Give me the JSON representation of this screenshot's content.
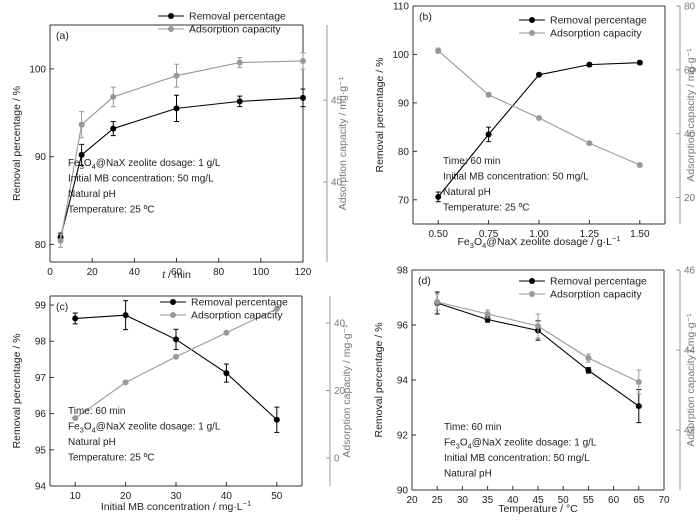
{
  "chart_data": [
    {
      "type": "line",
      "panel_label": "(a)",
      "xlabel_italic": "t",
      "xlabel_rest": " / min",
      "ylabel": "Removal percentage / %",
      "ylabel_right": "Adsorption capacity / mg·g⁻¹",
      "xlim": [
        0,
        120
      ],
      "xticks": [
        0,
        20,
        40,
        60,
        80,
        100,
        120
      ],
      "ylim": [
        78,
        105
      ],
      "yticks": [
        80,
        90,
        100
      ],
      "ylim_right": [
        35.1,
        49.6
      ],
      "yticks_right": [
        40,
        45
      ],
      "legend": [
        "Removal percentage",
        "Adsorption capacity"
      ],
      "annotations": [
        {
          "parts": [
            [
              "Fe",
              "n"
            ],
            [
              "3",
              "sub"
            ],
            [
              "O",
              "n"
            ],
            [
              "4",
              "sub"
            ],
            [
              "@NaX zeolite dosage: 1 g/L",
              "n"
            ]
          ]
        },
        {
          "parts": [
            [
              "Initial MB concentration: 50 mg/L",
              "n"
            ]
          ]
        },
        {
          "parts": [
            [
              "Natural pH",
              "n"
            ]
          ]
        },
        {
          "parts": [
            [
              "Temperature: 25 ºC",
              "n"
            ]
          ]
        }
      ],
      "series": [
        {
          "name": "Removal percentage",
          "axis": "left",
          "color": "#000000",
          "x": [
            5,
            15,
            30,
            60,
            90,
            120
          ],
          "y": [
            80.8,
            90.2,
            93.2,
            95.5,
            96.3,
            96.7
          ],
          "err": [
            0.5,
            1.2,
            0.8,
            1.5,
            0.6,
            1.0
          ]
        },
        {
          "name": "Adsorption capacity",
          "axis": "right",
          "color": "#999999",
          "x": [
            5,
            15,
            30,
            60,
            90,
            120
          ],
          "y": [
            36.4,
            43.5,
            45.2,
            46.5,
            47.3,
            47.4
          ],
          "err": [
            0.4,
            0.8,
            0.6,
            0.7,
            0.3,
            0.5
          ]
        }
      ]
    },
    {
      "type": "line",
      "panel_label": "(b)",
      "xlabel_parts": [
        [
          "Fe",
          "n"
        ],
        [
          "3",
          "sub"
        ],
        [
          "O",
          "n"
        ],
        [
          "4",
          "sub"
        ],
        [
          "@NaX zeolite dosage / g·L",
          "n"
        ],
        [
          "−1",
          "sup"
        ]
      ],
      "ylabel": "Removal percentage / %",
      "ylabel_right": "Adsorption capacity / mg·g⁻¹",
      "xlim": [
        0.375,
        1.625
      ],
      "xticks": [
        "0.50",
        "0.75",
        "1.00",
        "1.25",
        "1.50"
      ],
      "ylim": [
        65,
        110
      ],
      "yticks": [
        70,
        80,
        90,
        100,
        110
      ],
      "ylim_right": [
        11.7,
        80
      ],
      "yticks_right": [
        20,
        40,
        60,
        80
      ],
      "legend": [
        "Removal percentage",
        "Adsorption capacity"
      ],
      "annotations": [
        {
          "parts": [
            [
              "Time: 60 min",
              "n"
            ]
          ]
        },
        {
          "parts": [
            [
              "Initial MB concentration: 50 mg/L",
              "n"
            ]
          ]
        },
        {
          "parts": [
            [
              "Natural pH",
              "n"
            ]
          ]
        },
        {
          "parts": [
            [
              "Temperature: 25 ºC",
              "n"
            ]
          ]
        }
      ],
      "series": [
        {
          "name": "Removal percentage",
          "axis": "left",
          "color": "#000000",
          "x": [
            0.5,
            0.75,
            1.0,
            1.25,
            1.5
          ],
          "y": [
            70.6,
            83.5,
            95.8,
            97.9,
            98.3
          ],
          "err": [
            1.0,
            1.5,
            0.3,
            0.3,
            0.3
          ]
        },
        {
          "name": "Adsorption capacity",
          "axis": "right",
          "color": "#999999",
          "x": [
            0.5,
            0.75,
            1.0,
            1.25,
            1.5
          ],
          "y": [
            66.0,
            52.2,
            44.9,
            37.0,
            30.2
          ],
          "err": [
            0.8,
            0.6,
            0.3,
            0.3,
            0.3
          ]
        }
      ]
    },
    {
      "type": "line",
      "panel_label": "(c)",
      "xlabel_parts": [
        [
          "Initial MB concentration / mg·L",
          "n"
        ],
        [
          "−1",
          "sup"
        ]
      ],
      "ylabel": "Removal percentage / %",
      "ylabel_right": "Adsorption capacity / mg·g⁻¹",
      "xlim": [
        5,
        55
      ],
      "xticks": [
        10,
        20,
        30,
        40,
        50
      ],
      "ylim": [
        94,
        99.25
      ],
      "yticks": [
        94,
        95,
        96,
        97,
        98,
        99
      ],
      "ylim_right": [
        -8.3,
        48
      ],
      "yticks_right": [
        0,
        20,
        40
      ],
      "legend": [
        "Removal percentage",
        "Adsorption capacity"
      ],
      "annotations": [
        {
          "parts": [
            [
              "Time: 60 min",
              "n"
            ]
          ]
        },
        {
          "parts": [
            [
              "Fe",
              "n"
            ],
            [
              "3",
              "sub"
            ],
            [
              "O",
              "n"
            ],
            [
              "4",
              "sub"
            ],
            [
              "@NaX zeolite dosage: 1 g/L",
              "n"
            ]
          ]
        },
        {
          "parts": [
            [
              "Natural pH",
              "n"
            ]
          ]
        },
        {
          "parts": [
            [
              "Temperature: 25 ºC",
              "n"
            ]
          ]
        }
      ],
      "series": [
        {
          "name": "Removal percentage",
          "axis": "left",
          "color": "#000000",
          "x": [
            10,
            20,
            30,
            40,
            50
          ],
          "y": [
            98.63,
            98.72,
            98.05,
            97.12,
            95.83
          ],
          "err": [
            0.15,
            0.4,
            0.28,
            0.25,
            0.35
          ]
        },
        {
          "name": "Adsorption capacity",
          "axis": "right",
          "color": "#999999",
          "x": [
            10,
            20,
            30,
            40,
            50
          ],
          "y": [
            11.8,
            22.4,
            30.0,
            37.1,
            44.2
          ],
          "err": [
            0.3,
            0.3,
            0.3,
            0.3,
            0.3
          ]
        }
      ]
    },
    {
      "type": "line",
      "panel_label": "(d)",
      "xlabel": "Temperature / °C",
      "ylabel": "Removal percentage / %",
      "ylabel_right": "Adsorption capacity / mg·g⁻¹",
      "xlim": [
        20,
        70
      ],
      "xticks": [
        20,
        25,
        30,
        35,
        40,
        45,
        50,
        55,
        60,
        65,
        70
      ],
      "ylim": [
        90,
        98
      ],
      "yticks": [
        90,
        92,
        94,
        96,
        98
      ],
      "ylim_right": [
        40.5,
        46
      ],
      "yticks_right": [
        42,
        44,
        46
      ],
      "legend": [
        "Removal percentage",
        "Adsorption capacity"
      ],
      "annotations": [
        {
          "parts": [
            [
              "Time: 60 min",
              "n"
            ]
          ]
        },
        {
          "parts": [
            [
              "Fe",
              "n"
            ],
            [
              "3",
              "sub"
            ],
            [
              "O",
              "n"
            ],
            [
              "4",
              "sub"
            ],
            [
              "@NaX zeolite dosage: 1 g/L",
              "n"
            ]
          ]
        },
        {
          "parts": [
            [
              "Initial MB concentration: 50 mg/L",
              "n"
            ]
          ]
        },
        {
          "parts": [
            [
              "Natural pH",
              "n"
            ]
          ]
        }
      ],
      "series": [
        {
          "name": "Removal percentage",
          "axis": "left",
          "color": "#000000",
          "x": [
            25,
            35,
            45,
            55,
            65
          ],
          "y": [
            96.8,
            96.2,
            95.8,
            94.35,
            93.05
          ],
          "err": [
            0.4,
            0.1,
            0.35,
            0.1,
            0.6
          ]
        },
        {
          "name": "Adsorption capacity",
          "axis": "right",
          "color": "#999999",
          "x": [
            25,
            35,
            45,
            55,
            65
          ],
          "y": [
            45.2,
            44.9,
            44.6,
            43.8,
            43.2
          ],
          "err": [
            0.2,
            0.1,
            0.3,
            0.1,
            0.3
          ]
        }
      ]
    }
  ]
}
